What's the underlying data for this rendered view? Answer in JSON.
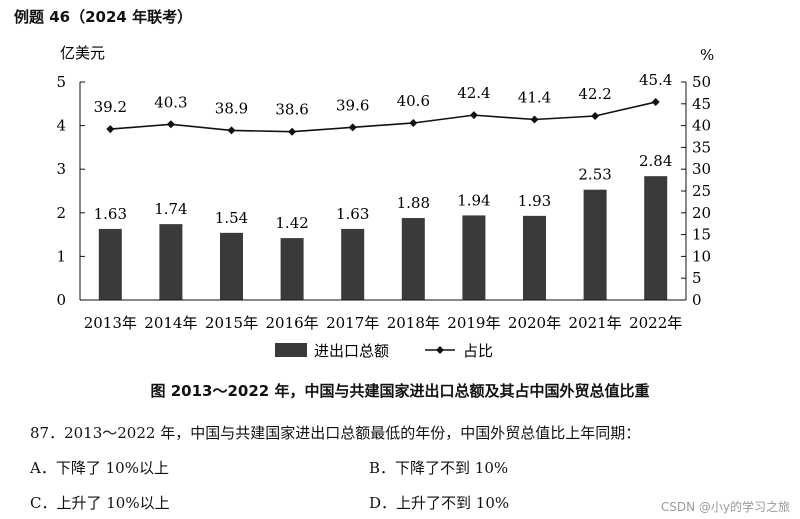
{
  "header": {
    "title": "例题 46（2024 年联考）"
  },
  "chart_data": {
    "type": "bar+line",
    "categories": [
      "2013年",
      "2014年",
      "2015年",
      "2016年",
      "2017年",
      "2018年",
      "2019年",
      "2020年",
      "2021年",
      "2022年"
    ],
    "series": [
      {
        "name": "进出口总额",
        "type": "bar",
        "axis": "left",
        "values": [
          1.63,
          1.74,
          1.54,
          1.42,
          1.63,
          1.88,
          1.94,
          1.93,
          2.53,
          2.84
        ],
        "labels": [
          "1.63",
          "1.74",
          "1.54",
          "1.42",
          "1.63",
          "1.88",
          "1.94",
          "1.93",
          "2.53",
          "2.84"
        ]
      },
      {
        "name": "占比",
        "type": "line",
        "axis": "right",
        "values": [
          39.2,
          40.3,
          38.9,
          38.6,
          39.6,
          40.6,
          42.4,
          41.4,
          42.2,
          45.4
        ],
        "labels": [
          "39.2",
          "40.3",
          "38.9",
          "38.6",
          "39.6",
          "40.6",
          "42.4",
          "41.4",
          "42.2",
          "45.4"
        ]
      }
    ],
    "left_axis": {
      "label": "亿美元",
      "range": [
        0,
        5
      ],
      "ticks": [
        0,
        1,
        2,
        3,
        4,
        5
      ]
    },
    "right_axis": {
      "label": "%",
      "range": [
        0,
        50
      ],
      "ticks": [
        0,
        5,
        10,
        15,
        20,
        25,
        30,
        35,
        40,
        45,
        50
      ]
    },
    "legend": {
      "position": "bottom",
      "items": [
        "进出口总额",
        "占比"
      ]
    },
    "grid": false,
    "colors": {
      "bar": "#3a3a3a",
      "line": "#111111"
    }
  },
  "caption": "图   2013～2022 年，中国与共建国家进出口总额及其占中国外贸总值比重",
  "question": "87．2013～2022 年，中国与共建国家进出口总额最低的年份，中国外贸总值比上年同期：",
  "options": {
    "a": "A．下降了 10%以上",
    "b": "B．下降了不到 10%",
    "c": "C．上升了 10%以上",
    "d": "D．上升了不到 10%"
  },
  "watermark": "CSDN @小y的学习之旅"
}
